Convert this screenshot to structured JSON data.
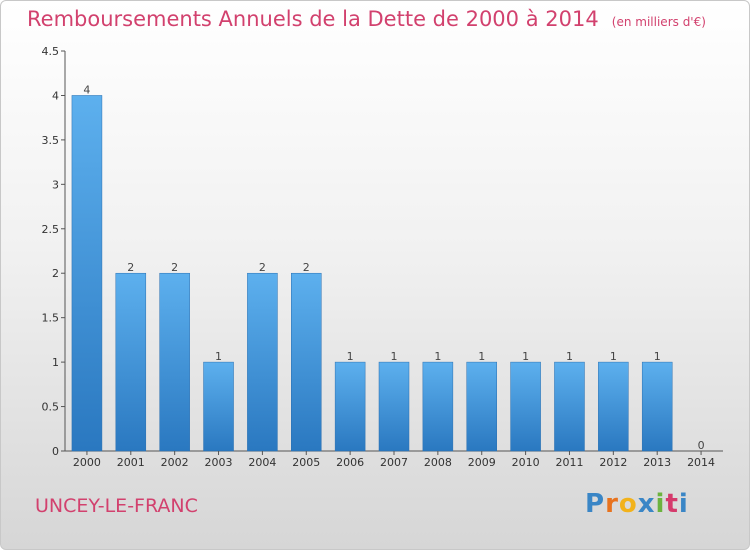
{
  "chart_data": {
    "type": "bar",
    "title": "Remboursements Annuels de la Dette de 2000 à 2014",
    "subtitle": "(en milliers d'€)",
    "categories": [
      "2000",
      "2001",
      "2002",
      "2003",
      "2004",
      "2005",
      "2006",
      "2007",
      "2008",
      "2009",
      "2010",
      "2011",
      "2012",
      "2013",
      "2014"
    ],
    "values": [
      4,
      2,
      2,
      1,
      2,
      2,
      1,
      1,
      1,
      1,
      1,
      1,
      1,
      1,
      0
    ],
    "value_labels": [
      "4",
      "2",
      "2",
      "1",
      "2",
      "2",
      "1",
      "1",
      "1",
      "1",
      "1",
      "1",
      "1",
      "1",
      "0"
    ],
    "y_ticks": [
      "0",
      "0.5",
      "1",
      "1.5",
      "2",
      "2.5",
      "3",
      "3.5",
      "4",
      "4.5"
    ],
    "ylim": [
      0,
      4.5
    ],
    "grid": false,
    "bar_color": "#3a8fd6"
  },
  "footer": {
    "commune": "UNCEY-LE-FRANC",
    "logo_letters": [
      "P",
      "r",
      "o",
      "x",
      "i",
      "t",
      "i"
    ],
    "logo_colors": [
      "#3a86c6",
      "#e8731e",
      "#f2b21b",
      "#3a86c6",
      "#6cb33e",
      "#d53a6c",
      "#3a86c6"
    ]
  }
}
